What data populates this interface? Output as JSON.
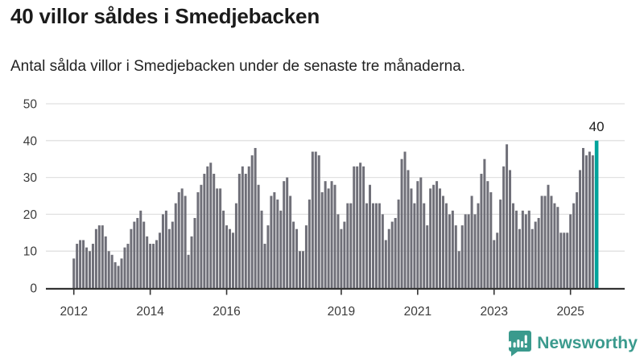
{
  "header": {
    "title": "40 villor såldes i Smedjebacken",
    "subtitle": "Antal sålda villor i Smedjebacken under de senaste tre månaderna."
  },
  "footer": {
    "brand": "Newsworthy",
    "logo_icon": "newsworthy-speech-bubble-barchart-icon",
    "brand_color": "#3a9a8d"
  },
  "chart_data": {
    "type": "bar",
    "title": "40 villor såldes i Smedjebacken",
    "subtitle": "Antal sålda villor i Smedjebacken under de senaste tre månaderna.",
    "frequency": "monthly",
    "start_month": "2012-01",
    "end_month": "2025-09",
    "grid": "horizontal",
    "legend": "none",
    "ylim": [
      0,
      50
    ],
    "y_ticks": [
      "0",
      "10",
      "20",
      "30",
      "40",
      "50"
    ],
    "x_tick_labels": [
      "2012",
      "2014",
      "2016",
      "2019",
      "2021",
      "2023",
      "2025"
    ],
    "x_tick_month_indices": [
      0,
      24,
      48,
      84,
      108,
      132,
      156
    ],
    "values": [
      8,
      12,
      13,
      13,
      11,
      10,
      12,
      16,
      17,
      17,
      14,
      10,
      9,
      7,
      6,
      8,
      11,
      12,
      16,
      18,
      19,
      21,
      18,
      14,
      12,
      12,
      13,
      15,
      20,
      21,
      16,
      18,
      23,
      26,
      27,
      25,
      9,
      14,
      19,
      26,
      28,
      31,
      33,
      34,
      31,
      27,
      27,
      21,
      17,
      16,
      15,
      23,
      31,
      33,
      31,
      33,
      36,
      38,
      28,
      21,
      12,
      17,
      25,
      26,
      24,
      21,
      29,
      30,
      25,
      18,
      16,
      10,
      10,
      17,
      24,
      37,
      37,
      36,
      26,
      29,
      27,
      29,
      28,
      20,
      16,
      18,
      23,
      23,
      33,
      33,
      34,
      33,
      23,
      28,
      23,
      23,
      23,
      20,
      13,
      16,
      18,
      19,
      24,
      35,
      37,
      32,
      27,
      23,
      29,
      30,
      23,
      17,
      27,
      28,
      29,
      27,
      25,
      23,
      20,
      21,
      17,
      10,
      17,
      20,
      20,
      25,
      20,
      23,
      31,
      35,
      29,
      26,
      13,
      15,
      24,
      33,
      39,
      32,
      23,
      21,
      16,
      21,
      20,
      21,
      16,
      18,
      19,
      25,
      25,
      28,
      25,
      23,
      22,
      15,
      15,
      15,
      20,
      23,
      26,
      32,
      38,
      36,
      37,
      36,
      40
    ],
    "highlight_last": true,
    "annotation_label": "40",
    "bar_color": "#6f6f78",
    "highlight_color": "#00a39b",
    "gridline_color": "#e1e1e1",
    "axis_line_color": "#333333",
    "axis_text_color": "#3b3b3b"
  }
}
